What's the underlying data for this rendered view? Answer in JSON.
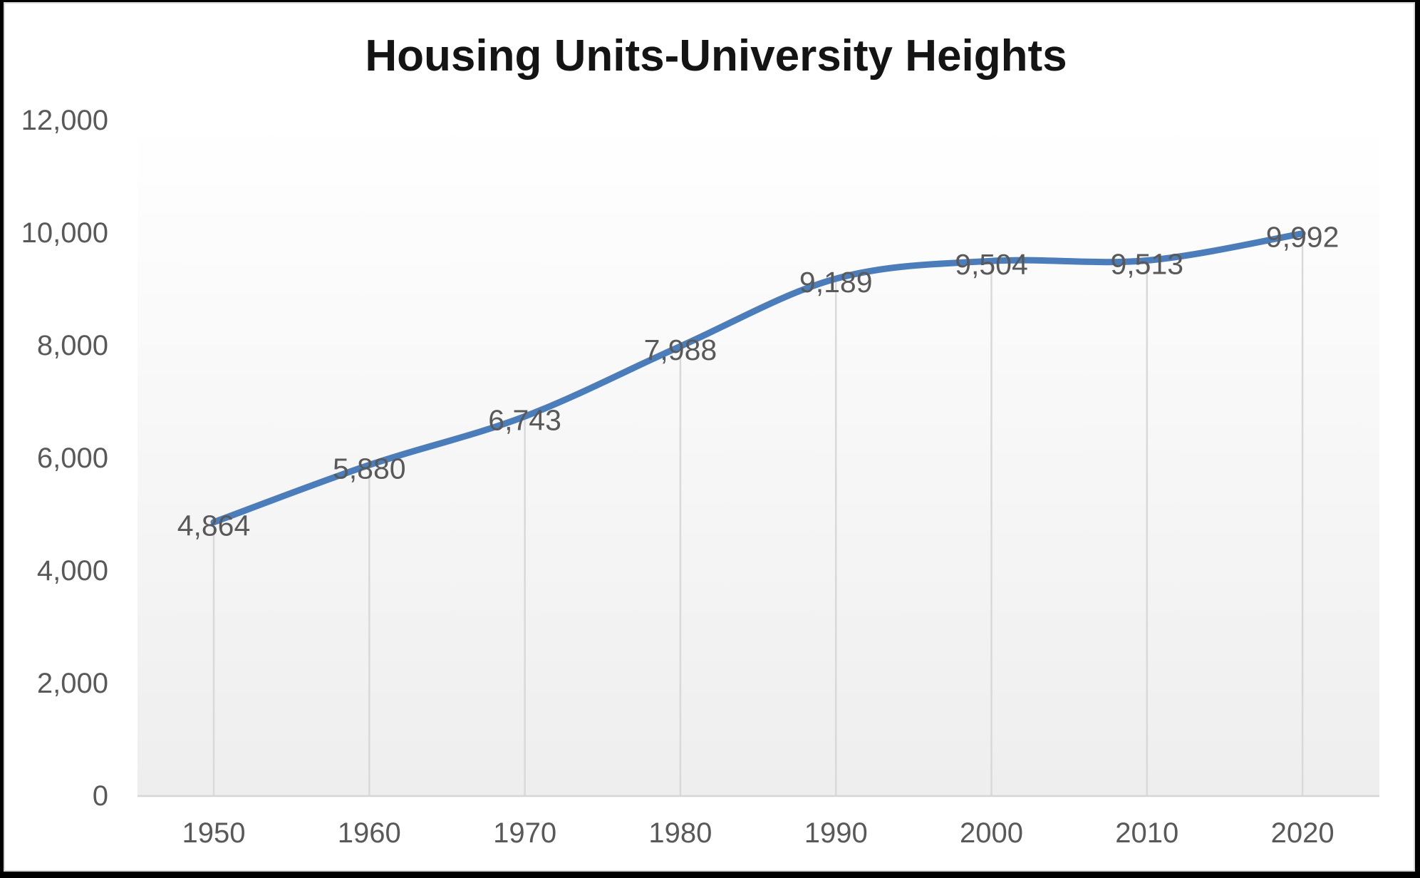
{
  "colors": {
    "line": "#4B7DBB",
    "grid": "#D9D9D9",
    "axis_line": "#D6D6D6",
    "axis_text": "#595959",
    "data_label_text": "#595959",
    "title_text": "#141414",
    "plot_gradient_top": "#FFFFFF",
    "plot_gradient_bottom": "#EEEEEE",
    "frame_border": "#000000"
  },
  "chart_data": {
    "type": "line",
    "title": "Housing Units-University Heights",
    "categories": [
      "1950",
      "1960",
      "1970",
      "1980",
      "1990",
      "2000",
      "2010",
      "2020"
    ],
    "values": [
      4864,
      5880,
      6743,
      7988,
      9189,
      9504,
      9513,
      9992
    ],
    "data_labels": [
      "4,864",
      "5,880",
      "6,743",
      "7,988",
      "9,189",
      "9,504",
      "9,513",
      "9,992"
    ],
    "series_name": "Housing Units",
    "xlabel": "",
    "ylabel": "",
    "ylim": [
      0,
      12000
    ],
    "ytick_interval": 2000,
    "ytick_labels": [
      "0",
      "2,000",
      "4,000",
      "6,000",
      "8,000",
      "10,000",
      "12,000"
    ],
    "grid": "vertical-drop-lines-only",
    "legend": "none",
    "line_smoothed": true,
    "data_label_position": "center"
  }
}
